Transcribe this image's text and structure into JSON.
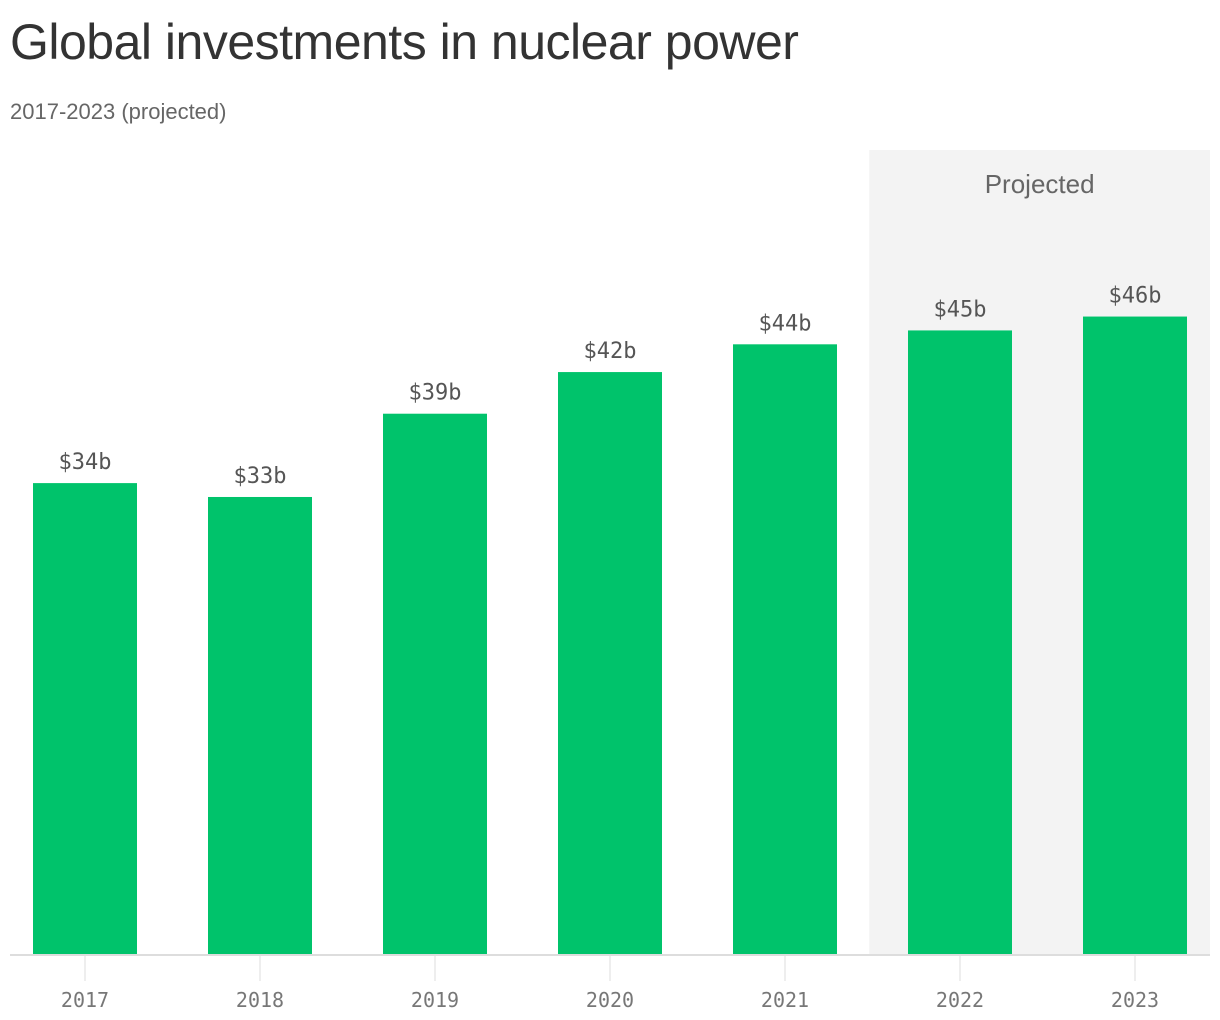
{
  "chart_data": {
    "type": "bar",
    "title": "Global investments in nuclear power",
    "subtitle": "2017-2023 (projected)",
    "categories": [
      "2017",
      "2018",
      "2019",
      "2020",
      "2021",
      "2022",
      "2023"
    ],
    "values": [
      34,
      33,
      39,
      42,
      44,
      45,
      46
    ],
    "value_labels": [
      "$34b",
      "$33b",
      "$39b",
      "$42b",
      "$44b",
      "$45b",
      "$46b"
    ],
    "projected_band": {
      "label": "Projected",
      "categories": [
        "2022",
        "2023"
      ]
    },
    "ylim": [
      0,
      58
    ],
    "grid": false,
    "colors": {
      "bar": "#00c36b",
      "projected_background": "#f3f3f3",
      "axis": "#dddddd",
      "title": "#333333",
      "text_muted": "#666666"
    }
  }
}
